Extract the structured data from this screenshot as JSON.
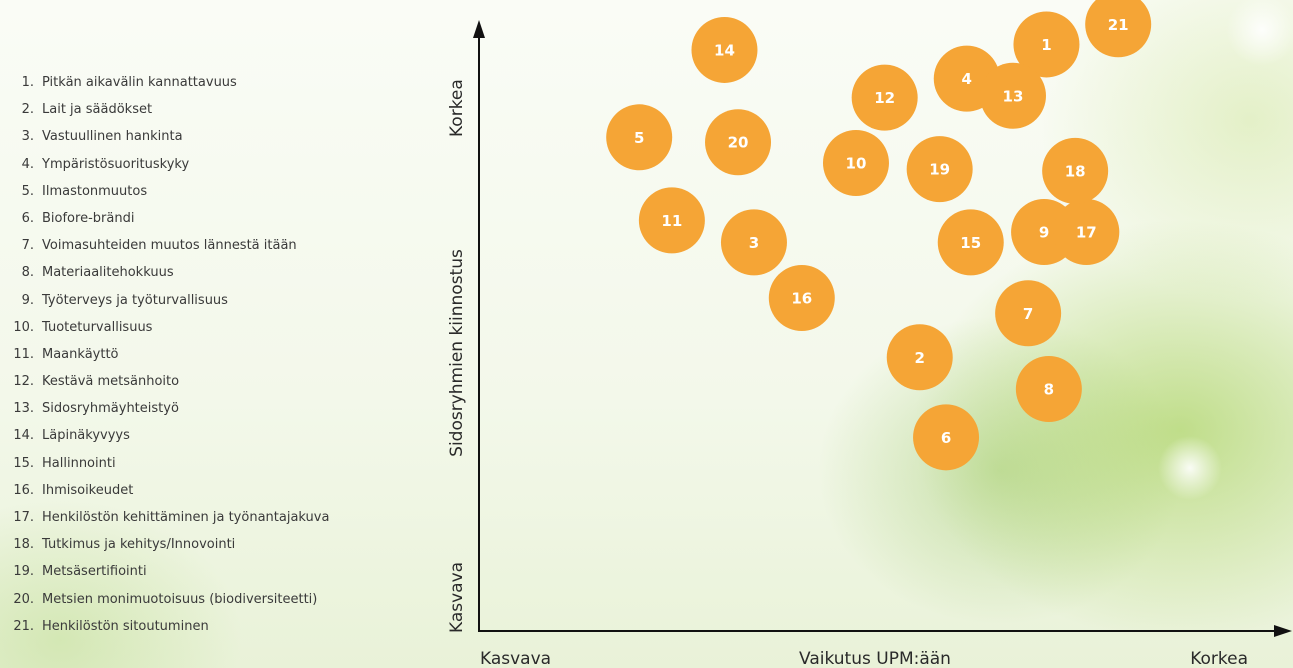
{
  "chart_data": {
    "type": "scatter",
    "xlabel": "Vaikutus UPM:ään",
    "ylabel": "Sidosryhmien kiinnostus",
    "x_low_label": "Kasvava",
    "x_high_label": "Korkea",
    "y_low_label": "Kasvava",
    "y_high_label": "Korkea",
    "xlim": [
      0,
      100
    ],
    "ylim": [
      0,
      100
    ],
    "grid": false,
    "colors": {
      "bubble": "#f5a536",
      "axis": "#111111"
    },
    "items": [
      {
        "id": "1",
        "label": "Pitkän aikavälin kannattavuus",
        "x": 71.2,
        "y": 96.0
      },
      {
        "id": "2",
        "label": "Lait ja säädökset",
        "x": 55.3,
        "y": 44.8
      },
      {
        "id": "3",
        "label": "Vastuullinen hankinta",
        "x": 34.5,
        "y": 63.6
      },
      {
        "id": "4",
        "label": "Ympäristösuorituskyky",
        "x": 61.2,
        "y": 90.4
      },
      {
        "id": "5",
        "label": "Ilmastonmuutos",
        "x": 20.1,
        "y": 80.8
      },
      {
        "id": "6",
        "label": "Biofore-brändi",
        "x": 58.6,
        "y": 31.7
      },
      {
        "id": "7",
        "label": "Voimasuhteiden muutos lännestä itään",
        "x": 68.9,
        "y": 52.0
      },
      {
        "id": "8",
        "label": "Materiaalitehokkuus",
        "x": 71.5,
        "y": 39.6
      },
      {
        "id": "9",
        "label": "Työterveys ja työturvallisuus",
        "x": 70.9,
        "y": 65.3
      },
      {
        "id": "10",
        "label": "Tuoteturvallisuus",
        "x": 47.3,
        "y": 76.6
      },
      {
        "id": "11",
        "label": "Maankäyttö",
        "x": 24.2,
        "y": 67.2
      },
      {
        "id": "12",
        "label": "Kestävä metsänhoito",
        "x": 50.9,
        "y": 87.3
      },
      {
        "id": "13",
        "label": "Sidosryhmäyhteistyö",
        "x": 67.0,
        "y": 87.6
      },
      {
        "id": "14",
        "label": "Läpinäkyvyys",
        "x": 30.8,
        "y": 95.1
      },
      {
        "id": "15",
        "label": "Hallinnointi",
        "x": 61.7,
        "y": 63.6
      },
      {
        "id": "16",
        "label": "Ihmisoikeudet",
        "x": 40.5,
        "y": 54.5
      },
      {
        "id": "17",
        "label": "Henkilöstön kehittäminen ja työnantajakuva",
        "x": 76.2,
        "y": 65.3
      },
      {
        "id": "18",
        "label": "Tutkimus ja kehitys/Innovointi",
        "x": 74.8,
        "y": 75.3
      },
      {
        "id": "19",
        "label": "Metsäsertifiointi",
        "x": 57.8,
        "y": 75.6
      },
      {
        "id": "20",
        "label": "Metsien monimuotoisuus (biodiversiteetti)",
        "x": 32.5,
        "y": 80.0
      },
      {
        "id": "21",
        "label": "Henkilöstön sitoutuminen",
        "x": 80.2,
        "y": 99.3
      }
    ]
  }
}
